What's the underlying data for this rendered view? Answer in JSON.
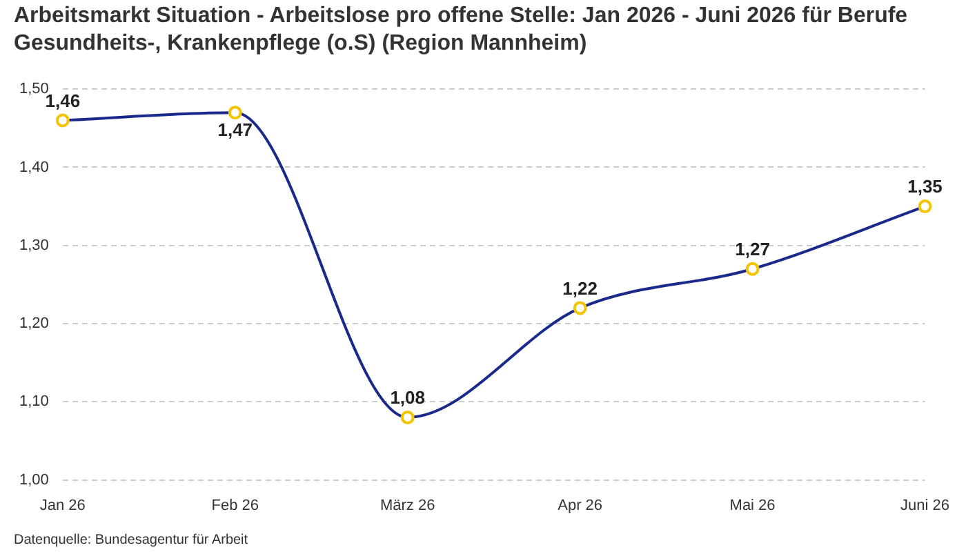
{
  "chart_data": {
    "type": "line",
    "title": "Arbeitsmarkt Situation - Arbeitslose pro offene Stelle: Jan 2026 - Juni 2026 für Berufe Gesundheits-, Krankenpflege (o.S) (Region Mannheim)",
    "categories": [
      "Jan 26",
      "Feb 26",
      "März 26",
      "Apr 26",
      "Mai 26",
      "Juni 26"
    ],
    "series": [
      {
        "color": "#1a2a8a",
        "values": [
          1.46,
          1.47,
          1.08,
          1.22,
          1.27,
          1.35
        ],
        "value_labels": [
          "1,46",
          "1,47",
          "1,08",
          "1,22",
          "1,27",
          "1,35"
        ]
      }
    ],
    "ylim": [
      1.0,
      1.5
    ],
    "yticks": [
      {
        "value": 1.0,
        "label": "1,00"
      },
      {
        "value": 1.1,
        "label": "1,10"
      },
      {
        "value": 1.2,
        "label": "1,20"
      },
      {
        "value": 1.3,
        "label": "1,30"
      },
      {
        "value": 1.4,
        "label": "1,40"
      },
      {
        "value": 1.5,
        "label": "1,50"
      }
    ],
    "grid": "y",
    "legend": false,
    "marker": "circle",
    "line_style": "solid",
    "annotations": [
      "Datenquelle: Bundesagentur für Arbeit"
    ]
  }
}
